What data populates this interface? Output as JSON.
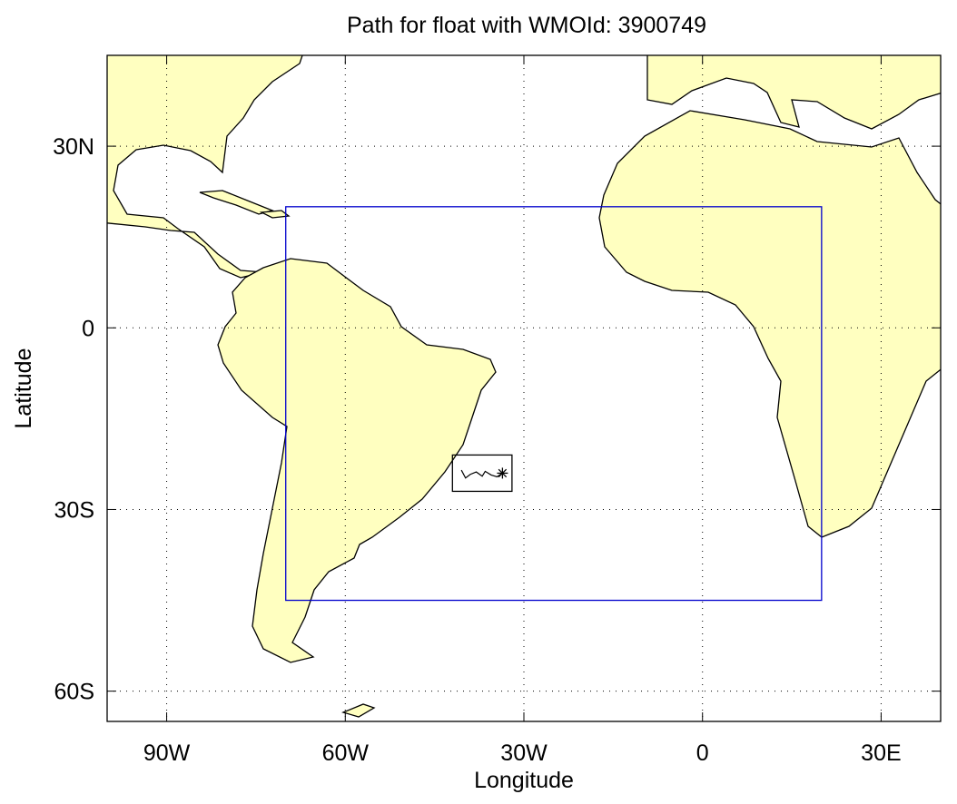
{
  "chart_data": {
    "type": "map",
    "title": "Path for float with WMOId: 3900749",
    "x_label": "Longitude",
    "y_label": "Latitude",
    "xlim": [
      -100,
      40
    ],
    "ylim": [
      -65,
      45
    ],
    "xticks": [
      {
        "value": -90,
        "label": "90W"
      },
      {
        "value": -60,
        "label": "60W"
      },
      {
        "value": -30,
        "label": "30W"
      },
      {
        "value": 0,
        "label": "0"
      },
      {
        "value": 30,
        "label": "30E"
      }
    ],
    "yticks": [
      {
        "value": 30,
        "label": "30N"
      },
      {
        "value": 0,
        "label": "0"
      },
      {
        "value": -30,
        "label": "30S"
      },
      {
        "value": -60,
        "label": "60S"
      }
    ],
    "grid": true,
    "region_box": {
      "lon": [
        -70,
        20
      ],
      "lat": [
        -45,
        20
      ],
      "color": "#0000cc"
    },
    "inset_box": {
      "lon": [
        -42,
        -32
      ],
      "lat": [
        -27,
        -21
      ],
      "color": "#000000"
    },
    "float_path": {
      "lon": [
        -40.5,
        -39.8,
        -39,
        -38,
        -37,
        -36.5,
        -35.5,
        -34.5,
        -33.6
      ],
      "lat": [
        -23.5,
        -24.8,
        -24.2,
        -23.8,
        -24.5,
        -23.7,
        -24.3,
        -24.6,
        -24
      ],
      "color": "#000000"
    }
  }
}
